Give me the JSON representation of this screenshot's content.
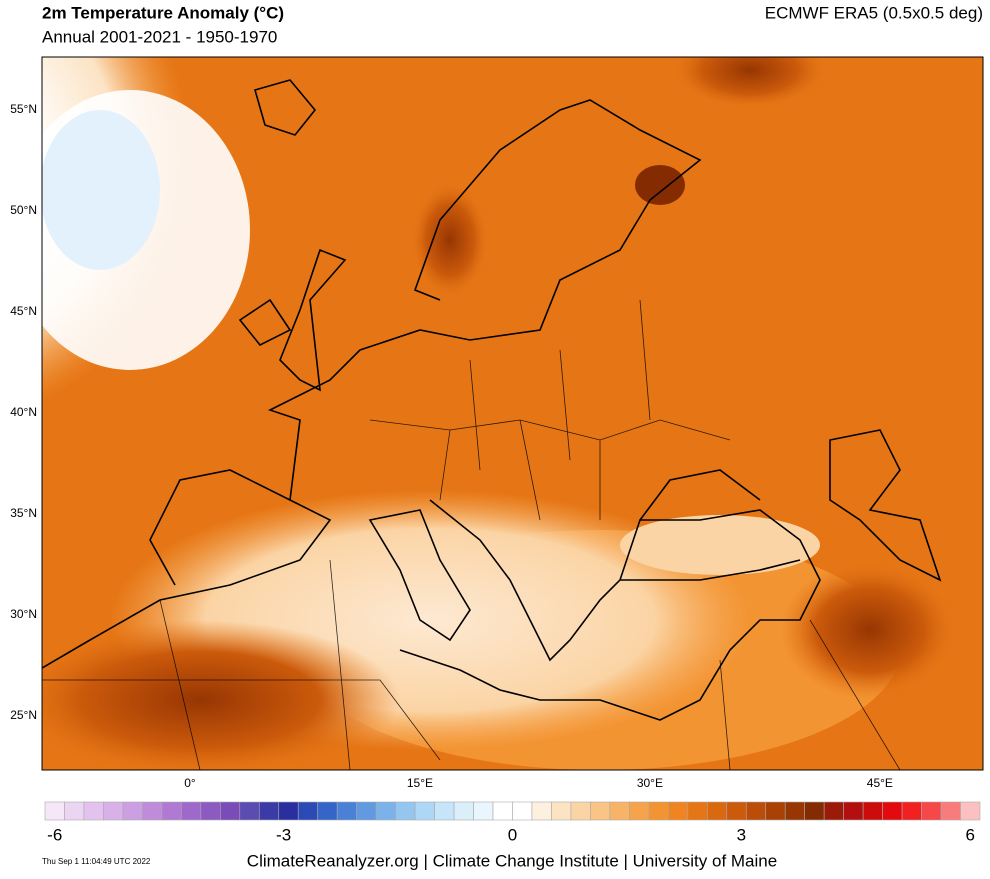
{
  "header": {
    "title": "2m Temperature Anomaly (°C)",
    "subtitle": "Annual 2001-2021 - 1950-1970",
    "source": "ECMWF ERA5 (0.5x0.5 deg)"
  },
  "map": {
    "lat_labels": [
      {
        "value": 55,
        "label": "55°N"
      },
      {
        "value": 50,
        "label": "50°N"
      },
      {
        "value": 45,
        "label": "45°N"
      },
      {
        "value": 40,
        "label": "40°N"
      },
      {
        "value": 35,
        "label": "35°N"
      },
      {
        "value": 30,
        "label": "30°N"
      },
      {
        "value": 25,
        "label": "25°N"
      }
    ],
    "lon_labels": [
      {
        "value": 0,
        "label": "0°"
      },
      {
        "value": 15,
        "label": "15°E"
      },
      {
        "value": 30,
        "label": "30°E"
      },
      {
        "value": 45,
        "label": "45°E"
      }
    ]
  },
  "colorbar": {
    "ticks": [
      -6,
      -3,
      0,
      3,
      6
    ],
    "colors": [
      "#f5e6f8",
      "#ecd5f3",
      "#e3c3ee",
      "#d8b1e8",
      "#cc9ee2",
      "#bf8cdb",
      "#b07ad4",
      "#9f69cc",
      "#8d5ac2",
      "#7a4cb8",
      "#5a4cb0",
      "#3b3ba8",
      "#2a2fa0",
      "#2b4ab5",
      "#3565c8",
      "#4a80d6",
      "#619ae0",
      "#7ab2e9",
      "#94c6f0",
      "#aed7f5",
      "#c6e5f9",
      "#dbeffb",
      "#eaf6fd",
      "#ffffff",
      "#ffffff",
      "#fdf0de",
      "#fce3c4",
      "#fbd4a5",
      "#f9c486",
      "#f8b466",
      "#f6a44b",
      "#f39433",
      "#ef8420",
      "#e67615",
      "#d9680f",
      "#cb5a0b",
      "#bb4d08",
      "#a94105",
      "#973603",
      "#852b02",
      "#9c1a08",
      "#b30f0f",
      "#cc0b0b",
      "#e3090e",
      "#f22020",
      "#f64848",
      "#f97c7c",
      "#fcc0c0"
    ]
  },
  "footer": {
    "timestamp": "Thu Sep  1 11:04:49 UTC 2022",
    "credits": "ClimateReanalyzer.org | Climate Change Institute | University of Maine"
  }
}
